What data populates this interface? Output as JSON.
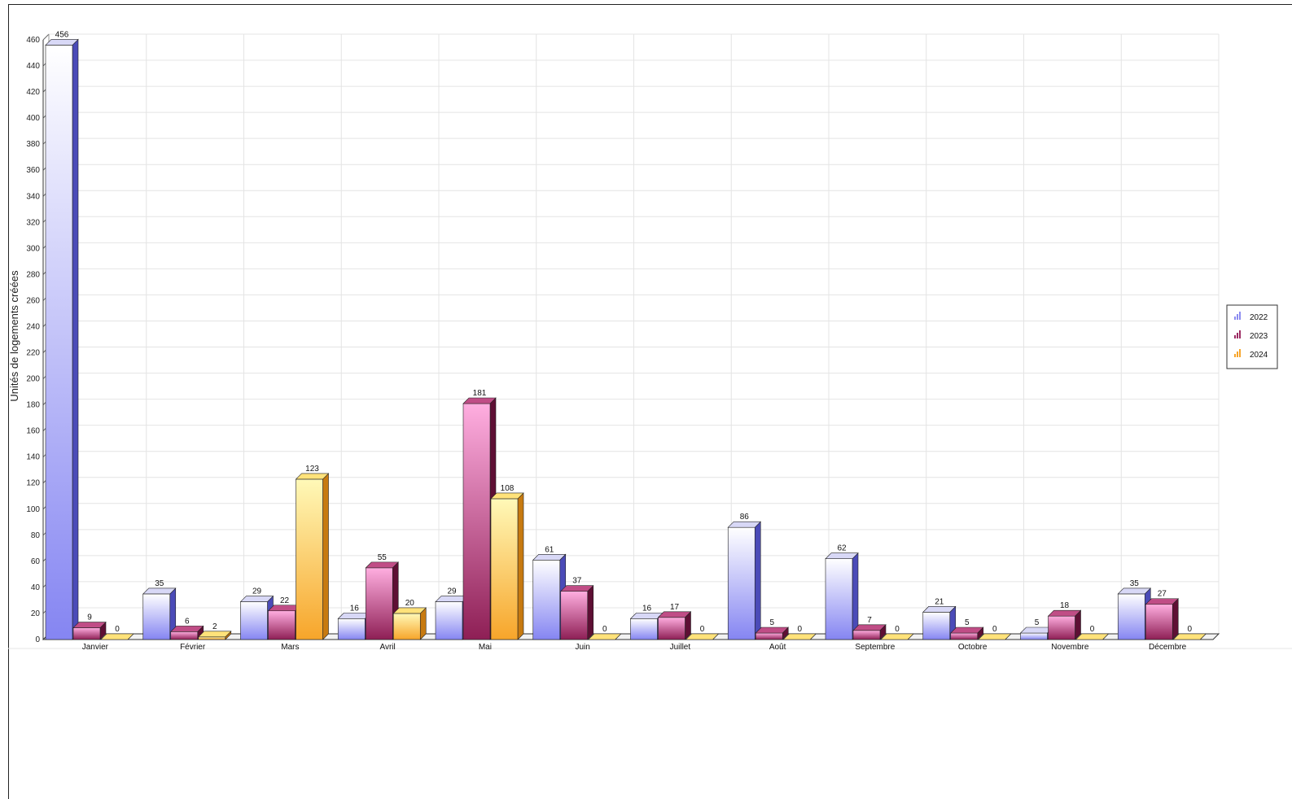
{
  "chart_data": {
    "type": "bar",
    "title": "",
    "xlabel": "",
    "ylabel": "Unités de logements créées",
    "ylim": [
      0,
      460
    ],
    "ytick_step": 20,
    "grid": true,
    "legend_position": "right",
    "categories": [
      "Janvier",
      "Février",
      "Mars",
      "Avril",
      "Mai",
      "Juin",
      "Juillet",
      "Août",
      "Septembre",
      "Octobre",
      "Novembre",
      "Décembre"
    ],
    "series": [
      {
        "name": "2022",
        "color": "#8c8cf0",
        "values": [
          456,
          35,
          29,
          16,
          29,
          61,
          16,
          86,
          62,
          21,
          5,
          35
        ]
      },
      {
        "name": "2023",
        "color": "#9c2b63",
        "values": [
          9,
          6,
          22,
          55,
          181,
          37,
          17,
          5,
          7,
          5,
          18,
          27
        ]
      },
      {
        "name": "2024",
        "color": "#f7a52a",
        "values": [
          0,
          2,
          123,
          20,
          108,
          0,
          0,
          0,
          0,
          0,
          0,
          0
        ]
      }
    ]
  }
}
